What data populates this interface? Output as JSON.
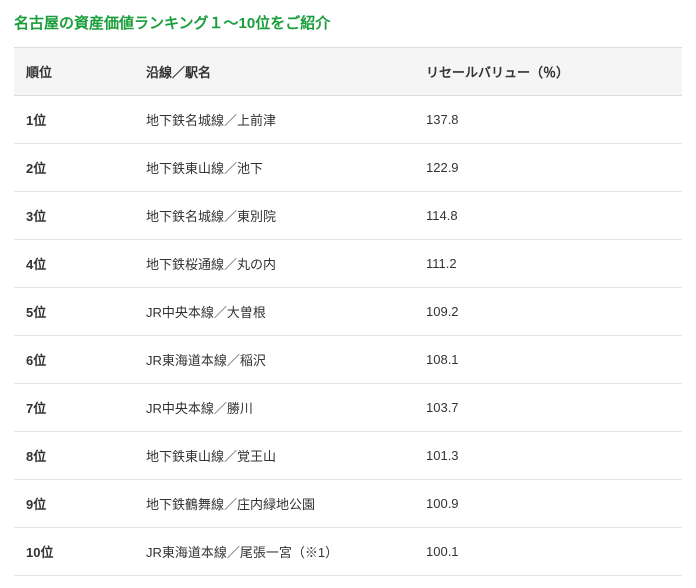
{
  "title_text": "名古屋の資産価値ランキング１～10位をご紹介",
  "title_color": "#1a9e3b",
  "table": {
    "header_bg": "#f5f5f5",
    "border_color": "#dddddd",
    "row_border_color": "#e5e5e5",
    "columns": [
      "順位",
      "沿線／駅名",
      "リセールバリュー（％）"
    ],
    "rows": [
      {
        "rank": "1位",
        "line_station": "地下鉄名城線／上前津",
        "value": "137.8"
      },
      {
        "rank": "2位",
        "line_station": "地下鉄東山線／池下",
        "value": "122.9"
      },
      {
        "rank": "3位",
        "line_station": "地下鉄名城線／東別院",
        "value": "114.8"
      },
      {
        "rank": "4位",
        "line_station": "地下鉄桜通線／丸の内",
        "value": "111.2"
      },
      {
        "rank": "5位",
        "line_station": "JR中央本線／大曽根",
        "value": "109.2"
      },
      {
        "rank": "6位",
        "line_station": "JR東海道本線／稲沢",
        "value": "108.1"
      },
      {
        "rank": "7位",
        "line_station": "JR中央本線／勝川",
        "value": "103.7"
      },
      {
        "rank": "8位",
        "line_station": "地下鉄東山線／覚王山",
        "value": "101.3"
      },
      {
        "rank": "9位",
        "line_station": "地下鉄鶴舞線／庄内緑地公園",
        "value": "100.9"
      },
      {
        "rank": "10位",
        "line_station": "JR東海道本線／尾張一宮（※1）",
        "value": "100.1"
      }
    ]
  }
}
